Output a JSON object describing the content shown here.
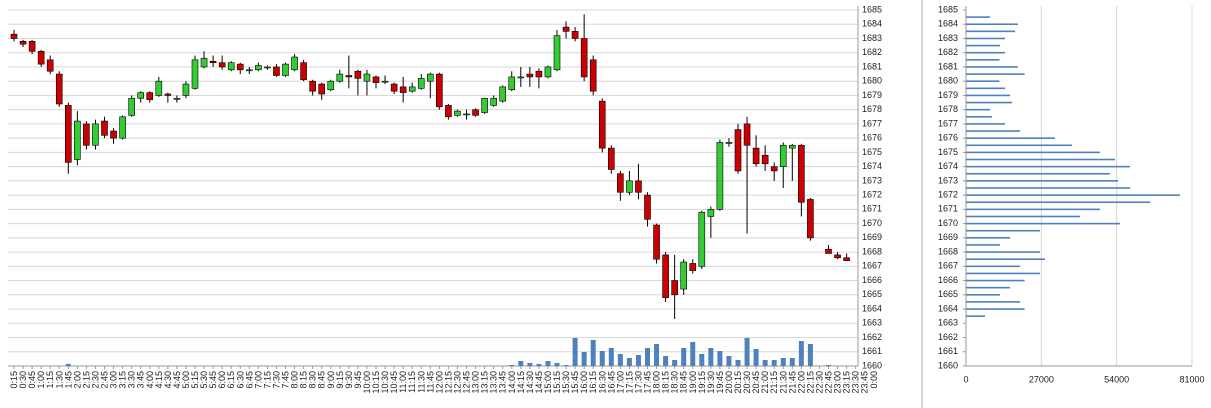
{
  "chart_data": [
    {
      "type": "candlestick",
      "categories": [
        "0:15",
        "0:30",
        "0:45",
        "1:00",
        "1:15",
        "1:30",
        "1:45",
        "2:00",
        "2:15",
        "2:30",
        "2:45",
        "3:00",
        "3:15",
        "3:30",
        "3:45",
        "4:00",
        "4:15",
        "4:30",
        "4:45",
        "5:00",
        "5:15",
        "5:30",
        "5:45",
        "6:00",
        "6:15",
        "6:30",
        "6:45",
        "7:00",
        "7:15",
        "7:30",
        "7:45",
        "8:00",
        "8:15",
        "8:30",
        "8:45",
        "9:00",
        "9:15",
        "9:30",
        "9:45",
        "10:00",
        "10:15",
        "10:30",
        "10:45",
        "11:00",
        "11:15",
        "11:30",
        "11:45",
        "12:00",
        "12:15",
        "12:30",
        "12:45",
        "13:00",
        "13:15",
        "13:30",
        "13:45",
        "14:00",
        "14:15",
        "14:30",
        "14:45",
        "15:00",
        "15:15",
        "15:30",
        "15:45",
        "16:00",
        "16:15",
        "16:30",
        "16:45",
        "17:00",
        "17:15",
        "17:30",
        "17:45",
        "18:00",
        "18:15",
        "18:30",
        "18:45",
        "19:00",
        "19:15",
        "19:30",
        "19:45",
        "20:00",
        "20:15",
        "20:30",
        "20:45",
        "21:00",
        "21:15",
        "21:30",
        "21:45",
        "22:00",
        "22:15",
        "22:30",
        "22:45",
        "23:00",
        "23:15",
        "23:30",
        "23:45",
        "0:00"
      ],
      "open": [
        1683.3,
        1682.8,
        1682.8,
        1682.1,
        1681.5,
        1680.5,
        1678.3,
        1674.5,
        1677.0,
        1675.5,
        1677.2,
        1676.5,
        1676.0,
        1677.6,
        1678.8,
        1679.2,
        1679.0,
        1679.1,
        1678.8,
        1679.0,
        1679.5,
        1681.0,
        1681.4,
        1681.3,
        1680.8,
        1681.2,
        1680.8,
        1680.8,
        1681.0,
        1681.0,
        1680.4,
        1680.8,
        1681.3,
        1680.0,
        1679.8,
        1679.4,
        1680.0,
        1680.4,
        1680.7,
        1680.0,
        1680.3,
        1680.0,
        1679.8,
        1679.6,
        1679.3,
        1679.5,
        1680.0,
        1680.5,
        1678.3,
        1677.6,
        1677.7,
        1678.0,
        1677.8,
        1678.3,
        1678.6,
        1679.4,
        1680.3,
        1680.5,
        1680.7,
        1680.3,
        1680.8,
        1683.8,
        1683.5,
        1683.0,
        1681.5,
        1678.6,
        1675.3,
        1673.5,
        1672.2,
        1673.0,
        1672.0,
        1669.9,
        1667.8,
        1666.0,
        1665.4,
        1667.2,
        1667.0,
        1670.5,
        1671.0,
        1675.7,
        1676.6,
        1677.0,
        1675.3,
        1674.8,
        1674.0,
        1674.0,
        1675.3,
        1675.5,
        1671.7,
        null,
        1668.2,
        1667.8,
        1667.6,
        null,
        null,
        null
      ],
      "high": [
        1683.6,
        1682.9,
        1682.9,
        1682.2,
        1681.8,
        1680.7,
        1678.5,
        1677.9,
        1677.2,
        1677.3,
        1677.5,
        1676.7,
        1677.6,
        1679.0,
        1679.3,
        1679.3,
        1680.3,
        1679.2,
        1679.0,
        1680.0,
        1681.8,
        1682.1,
        1681.8,
        1681.8,
        1681.4,
        1681.3,
        1681.0,
        1681.3,
        1681.1,
        1681.2,
        1681.3,
        1681.9,
        1681.5,
        1680.1,
        1679.9,
        1680.1,
        1680.8,
        1681.8,
        1680.8,
        1680.8,
        1680.4,
        1680.4,
        1679.9,
        1680.3,
        1679.9,
        1680.5,
        1680.6,
        1680.6,
        1678.4,
        1678.0,
        1678.0,
        1678.1,
        1678.8,
        1679.0,
        1679.7,
        1680.7,
        1681.0,
        1681.0,
        1680.9,
        1681.1,
        1683.6,
        1684.2,
        1683.8,
        1684.7,
        1681.8,
        1678.8,
        1675.5,
        1673.7,
        1673.7,
        1674.2,
        1672.2,
        1670.0,
        1668.0,
        1667.8,
        1667.5,
        1667.5,
        1670.9,
        1671.2,
        1675.9,
        1676.0,
        1677.0,
        1677.5,
        1676.2,
        1675.5,
        1674.3,
        1675.7,
        1675.6,
        1675.6,
        1671.8,
        null,
        1668.5,
        1668.0,
        1667.9,
        null,
        null,
        null
      ],
      "low": [
        1682.8,
        1682.4,
        1681.9,
        1681.0,
        1680.5,
        1678.2,
        1673.5,
        1674.1,
        1675.2,
        1675.2,
        1676.0,
        1675.6,
        1675.9,
        1677.5,
        1678.5,
        1678.5,
        1678.9,
        1678.5,
        1678.5,
        1678.8,
        1679.4,
        1680.9,
        1681.0,
        1680.8,
        1680.7,
        1680.5,
        1680.5,
        1680.7,
        1680.8,
        1680.3,
        1680.3,
        1680.7,
        1680.0,
        1679.0,
        1678.7,
        1679.3,
        1679.9,
        1679.5,
        1679.0,
        1679.0,
        1679.5,
        1679.8,
        1679.1,
        1678.5,
        1679.2,
        1679.4,
        1678.8,
        1678.0,
        1677.3,
        1677.5,
        1677.3,
        1677.5,
        1677.7,
        1678.2,
        1678.5,
        1679.3,
        1679.6,
        1679.6,
        1679.5,
        1680.2,
        1680.7,
        1683.0,
        1682.8,
        1680.0,
        1679.0,
        1675.0,
        1673.5,
        1671.6,
        1672.0,
        1671.7,
        1669.8,
        1667.2,
        1664.5,
        1663.3,
        1665.0,
        1666.5,
        1666.8,
        1669.0,
        1670.9,
        1675.4,
        1673.5,
        1669.3,
        1674.0,
        1673.7,
        1673.0,
        1672.5,
        1673.0,
        1670.5,
        1668.8,
        null,
        1667.9,
        1667.5,
        1667.4,
        null,
        null,
        null
      ],
      "close": [
        1683.0,
        1682.6,
        1682.1,
        1681.2,
        1680.7,
        1678.4,
        1674.3,
        1677.2,
        1675.5,
        1677.0,
        1676.2,
        1676.0,
        1677.5,
        1678.8,
        1679.2,
        1678.7,
        1680.0,
        1679.0,
        1678.8,
        1679.8,
        1681.5,
        1681.6,
        1681.3,
        1681.0,
        1681.3,
        1680.8,
        1680.8,
        1681.1,
        1681.0,
        1680.4,
        1681.2,
        1681.7,
        1680.1,
        1679.3,
        1679.1,
        1680.0,
        1680.5,
        1680.3,
        1680.2,
        1680.5,
        1679.9,
        1680.0,
        1679.3,
        1679.2,
        1679.6,
        1680.2,
        1680.5,
        1678.2,
        1677.5,
        1677.9,
        1677.7,
        1677.6,
        1678.8,
        1678.8,
        1679.6,
        1680.3,
        1680.3,
        1680.3,
        1680.3,
        1681.0,
        1683.2,
        1683.5,
        1683.0,
        1680.3,
        1679.3,
        1675.3,
        1673.8,
        1672.2,
        1673.0,
        1672.2,
        1670.3,
        1667.5,
        1664.8,
        1665.0,
        1667.3,
        1666.7,
        1670.8,
        1671.0,
        1675.7,
        1675.7,
        1673.7,
        1675.5,
        1674.2,
        1674.2,
        1673.7,
        1675.5,
        1675.5,
        1671.5,
        1669.0,
        null,
        1667.9,
        1667.6,
        1667.4,
        null,
        null,
        null
      ],
      "volume": [
        0,
        0,
        0,
        0,
        0,
        0,
        2,
        0,
        0,
        0,
        0,
        0,
        0,
        0,
        0,
        0,
        0,
        0,
        0,
        0,
        0,
        0,
        0,
        0,
        0,
        0,
        0,
        0,
        0,
        0,
        0,
        0,
        0,
        0,
        0,
        0,
        0,
        0,
        0,
        0,
        0,
        0,
        0,
        0,
        0,
        0,
        0,
        0,
        0,
        0,
        0,
        0,
        0,
        0,
        0,
        1,
        5,
        3,
        2,
        5,
        3,
        1,
        28,
        14,
        26,
        15,
        18,
        12,
        8,
        11,
        18,
        22,
        10,
        6,
        18,
        24,
        12,
        18,
        15,
        10,
        6,
        28,
        17,
        6,
        6,
        8,
        8,
        25,
        22,
        0,
        1,
        0,
        0,
        0,
        0,
        0
      ],
      "up_color": "#33cc33",
      "down_color": "#cc0000",
      "volume_color": "#4f81bd",
      "grid": true,
      "ylim": [
        1660,
        1685
      ],
      "yticks": [
        1660,
        1661,
        1662,
        1663,
        1664,
        1665,
        1666,
        1667,
        1668,
        1669,
        1670,
        1671,
        1672,
        1673,
        1674,
        1675,
        1676,
        1677,
        1678,
        1679,
        1680,
        1681,
        1682,
        1683,
        1684,
        1685
      ]
    },
    {
      "type": "hbar",
      "color": "#4f81bd",
      "grid": true,
      "prices": [
        1663.5,
        1664,
        1664.5,
        1665,
        1665.5,
        1666,
        1666.5,
        1667,
        1667.5,
        1668,
        1668.5,
        1669,
        1669.5,
        1670,
        1670.5,
        1671,
        1671.5,
        1672,
        1672.5,
        1673,
        1673.5,
        1674,
        1674.5,
        1675,
        1675.5,
        1676,
        1676.5,
        1677,
        1677.5,
        1678,
        1678.5,
        1679,
        1679.5,
        1680,
        1680.5,
        1681,
        1681.5,
        1682,
        1682.5,
        1683,
        1683.5,
        1684,
        1684.5
      ],
      "values": [
        6800,
        21000,
        19400,
        12200,
        15800,
        21000,
        26500,
        19400,
        28300,
        26500,
        12200,
        15800,
        26500,
        55200,
        40900,
        48000,
        66000,
        76700,
        58800,
        54500,
        51600,
        58800,
        53400,
        48000,
        38000,
        31900,
        19400,
        14000,
        9300,
        8600,
        16500,
        15800,
        14000,
        12000,
        21000,
        18600,
        12000,
        14000,
        12200,
        14000,
        17600,
        18600,
        8600
      ],
      "xlim": [
        0,
        81000
      ],
      "xticks": [
        0,
        27000,
        54000,
        81000
      ],
      "ylim": [
        1660,
        1685
      ],
      "yticks": [
        1660,
        1661,
        1662,
        1663,
        1664,
        1665,
        1666,
        1667,
        1668,
        1669,
        1670,
        1671,
        1672,
        1673,
        1674,
        1675,
        1676,
        1677,
        1678,
        1679,
        1680,
        1681,
        1682,
        1683,
        1684,
        1685
      ]
    }
  ]
}
